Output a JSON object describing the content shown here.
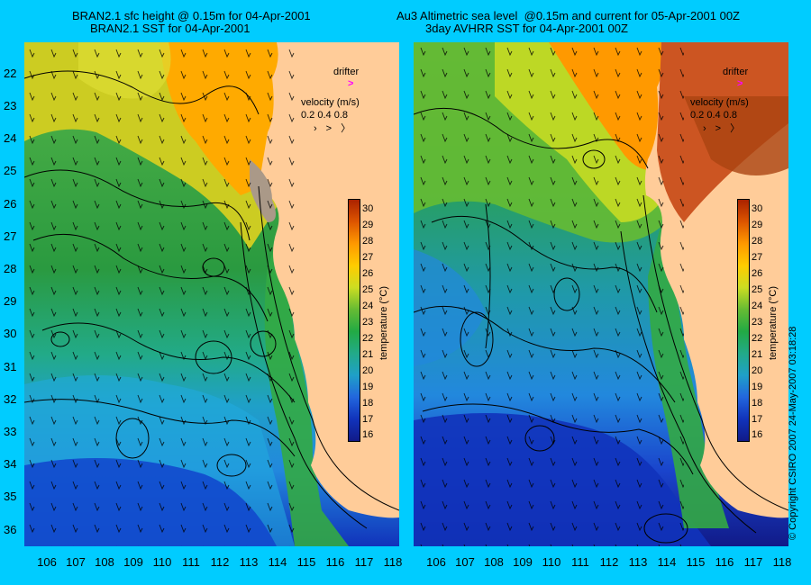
{
  "left_panel": {
    "title_line1": "BRAN2.1 sfc height @ 0.15m for 04-Apr-2001",
    "title_line2": "BRAN2.1 SST for 04-Apr-2001"
  },
  "right_panel": {
    "title_line1": "Au3 Altimetric sea level  @0.15m and current for 05-Apr-2001 00Z",
    "title_line2": "3day AVHRR SST for 04-Apr-2001 00Z"
  },
  "legend": {
    "drifter_label": "drifter",
    "velocity_label": "velocity (m/s)",
    "velocity_scale": "0.2 0.4 0.8"
  },
  "colorbar": {
    "title": "temperature (°C)",
    "ticks": [
      "30",
      "29",
      "28",
      "27",
      "26",
      "25",
      "24",
      "23",
      "22",
      "21",
      "20",
      "19",
      "18",
      "17",
      "16"
    ]
  },
  "axes": {
    "latitude_labels": [
      "22",
      "23",
      "24",
      "25",
      "26",
      "27",
      "28",
      "29",
      "30",
      "31",
      "32",
      "33",
      "34",
      "35",
      "36"
    ],
    "longitude_labels": [
      "106",
      "107",
      "108",
      "109",
      "110",
      "111",
      "112",
      "113",
      "114",
      "115",
      "116",
      "117",
      "118"
    ]
  },
  "copyright": "© Copyright CSIRO 2007   24-May-2007 03:18:28",
  "colors": {
    "background": "#00ccff",
    "land": "#ffcc99",
    "drifter": "#ff00ff"
  }
}
